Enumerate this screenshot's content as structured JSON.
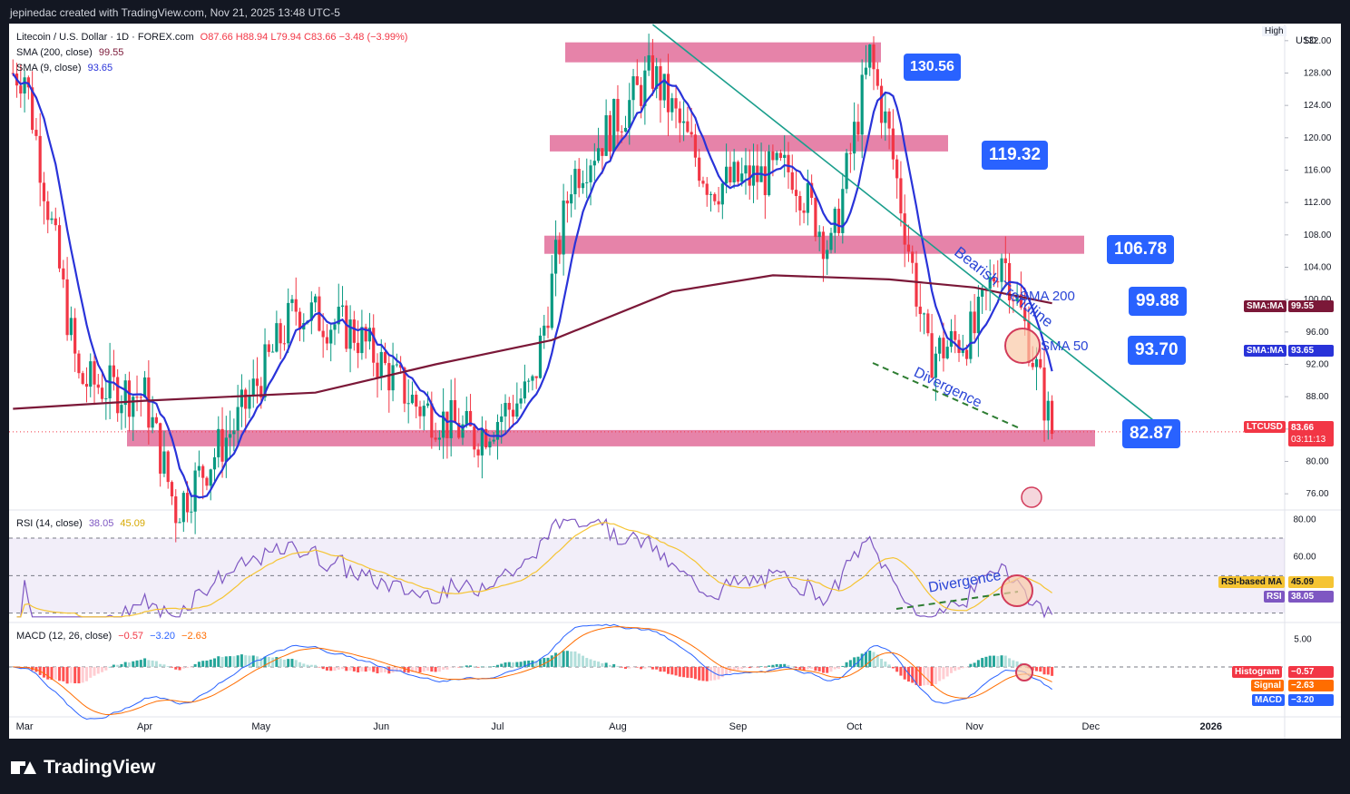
{
  "header": {
    "credit": "jepinedac created with TradingView.com, Nov 21, 2025 13:48 UTC-5"
  },
  "legend": {
    "symbol": "Litecoin / U.S. Dollar · 1D · FOREX.com",
    "ohlc": "O87.66  H88.94  L79.94  C83.66  −3.48 (−3.99%)",
    "sma200_label": "SMA (200, close)",
    "sma200_value": "99.55",
    "sma9_label": "SMA (9, close)",
    "sma9_value": "93.65",
    "rsi_label": "RSI (14, close)",
    "rsi_value": "38.05",
    "rsi_ma_value": "45.09",
    "macd_label": "MACD (12, 26, close)",
    "macd_hist": "−0.57",
    "macd_line": "−3.20",
    "macd_signal": "−2.63"
  },
  "scale": {
    "currency": "USD",
    "mode": "High",
    "price_ticks": [
      "132.00",
      "128.00",
      "124.00",
      "120.00",
      "116.00",
      "112.00",
      "108.00",
      "104.00",
      "100.00",
      "96.00",
      "92.00",
      "88.00",
      "84.00",
      "80.00",
      "76.00"
    ],
    "rsi_ticks": [
      "80.00",
      "60.00",
      "40.00"
    ],
    "macd_ticks": [
      "5.00"
    ],
    "time_ticks": [
      "Mar",
      "Apr",
      "May",
      "Jun",
      "Jul",
      "Aug",
      "Sep",
      "Oct",
      "Nov",
      "Dec",
      "2026"
    ]
  },
  "right_tags": {
    "sma_ma_1_label": "SMA:MA",
    "sma_ma_1_value": "99.55",
    "sma_ma_2_label": "SMA:MA",
    "sma_ma_2_value": "93.65",
    "ltc_label": "LTCUSD",
    "ltc_value": "83.66",
    "ltc_countdown": "03:11:13",
    "rsi_ma_label": "RSI-based MA",
    "rsi_ma_value": "45.09",
    "rsi_label": "RSI",
    "rsi_value": "38.05",
    "hist_label": "Histogram",
    "hist_value": "−0.57",
    "signal_label": "Signal",
    "signal_value": "−2.63",
    "macd_label": "MACD",
    "macd_value": "−3.20"
  },
  "levels": [
    "130.56",
    "119.32",
    "106.78",
    "99.88",
    "93.70",
    "82.87"
  ],
  "annotations": {
    "bearish_trendline": "Bearish Trendline",
    "sma200": "SMA 200",
    "sma50": "SMA 50",
    "divergence_price": "Divergence",
    "divergence_rsi": "Divergence"
  },
  "footer": {
    "brand": "TradingView"
  },
  "colors": {
    "up": "#089981",
    "down": "#f23645",
    "sma9": "#2933d9",
    "sma200": "#7b1838",
    "zone": "#e26d9a",
    "trend": "#1a9e8c",
    "label": "#2962ff",
    "rsi": "#7e57c2",
    "rsi_ma": "#f5c433",
    "macd": "#2962ff",
    "signal": "#ff6d00"
  },
  "chart_data": [
    {
      "type": "candlestick",
      "title": "Litecoin / U.S. Dollar · 1D · FOREX.com",
      "x_range": [
        "2025-02-25",
        "2026-01-20"
      ],
      "ylim": [
        74,
        134
      ],
      "close_series_monthly_approx": [
        {
          "date": "2025-03-01",
          "close": 128
        },
        {
          "date": "2025-03-15",
          "close": 90
        },
        {
          "date": "2025-04-01",
          "close": 88
        },
        {
          "date": "2025-04-09",
          "close": 74
        },
        {
          "date": "2025-04-25",
          "close": 85
        },
        {
          "date": "2025-05-10",
          "close": 99
        },
        {
          "date": "2025-05-25",
          "close": 96
        },
        {
          "date": "2025-06-10",
          "close": 87
        },
        {
          "date": "2025-06-25",
          "close": 83
        },
        {
          "date": "2025-07-10",
          "close": 89
        },
        {
          "date": "2025-07-20",
          "close": 115
        },
        {
          "date": "2025-08-10",
          "close": 128
        },
        {
          "date": "2025-08-25",
          "close": 114
        },
        {
          "date": "2025-09-15",
          "close": 116
        },
        {
          "date": "2025-09-25",
          "close": 106
        },
        {
          "date": "2025-10-05",
          "close": 130
        },
        {
          "date": "2025-10-10",
          "close": 120
        },
        {
          "date": "2025-10-20",
          "close": 93
        },
        {
          "date": "2025-11-01",
          "close": 96
        },
        {
          "date": "2025-11-08",
          "close": 106
        },
        {
          "date": "2025-11-15",
          "close": 95
        },
        {
          "date": "2025-11-21",
          "close": 83.66
        }
      ],
      "indicators": {
        "sma200_last": 99.55,
        "sma9_last": 93.65
      },
      "horizontal_zones": [
        130.56,
        119.32,
        106.78,
        82.87
      ],
      "annotated_levels": [
        130.56,
        119.32,
        106.78,
        99.88,
        93.7,
        82.87
      ],
      "trendline": {
        "from": {
          "date": "2025-08-10",
          "price": 134
        },
        "to": {
          "date": "2025-12-20",
          "price": 84
        }
      }
    },
    {
      "type": "line",
      "title": "RSI (14, close)",
      "ylim": [
        25,
        85
      ],
      "series": [
        {
          "name": "RSI",
          "last": 38.05
        },
        {
          "name": "RSI-based MA",
          "last": 45.09
        }
      ],
      "levels": [
        70,
        50,
        30
      ]
    },
    {
      "type": "bar",
      "title": "MACD (12, 26, close)",
      "series": [
        {
          "name": "Histogram",
          "last": -0.57
        },
        {
          "name": "Signal",
          "last": -2.63
        },
        {
          "name": "MACD",
          "last": -3.2
        }
      ]
    }
  ]
}
